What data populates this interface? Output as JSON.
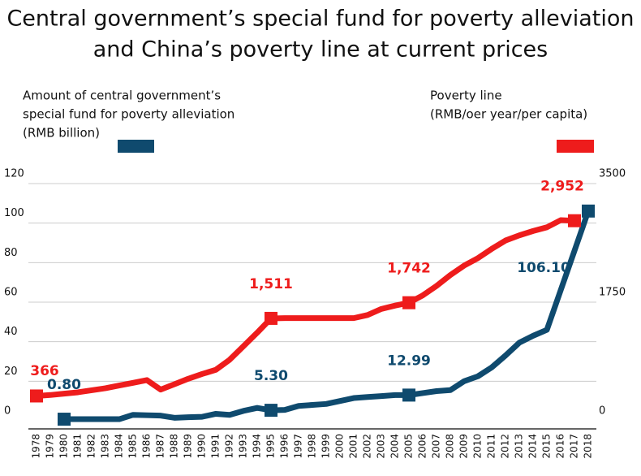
{
  "chart_data": {
    "type": "line",
    "title": [
      "Central government’s special fund for poverty alleviation",
      "and China’s poverty line at current prices"
    ],
    "ylabel": [
      "Amount of central government’s",
      "special fund for poverty alleviation",
      "(RMB billion)"
    ],
    "y2label": [
      "Poverty line",
      "(RMB/oer year/per capita)"
    ],
    "categories": [
      "1978",
      "1979",
      "1980",
      "1981",
      "1982",
      "1983",
      "1984",
      "1985",
      "1986",
      "1987",
      "1988",
      "1989",
      "1990",
      "1991",
      "1992",
      "1993",
      "1994",
      "1995",
      "1996",
      "1997",
      "1998",
      "1999",
      "2000",
      "2001",
      "2002",
      "2003",
      "2004",
      "2005",
      "2006",
      "2007",
      "2008",
      "2009",
      "2010",
      "2011",
      "2012",
      "2013",
      "2014",
      "2015",
      "2016",
      "2017",
      "2018"
    ],
    "series": [
      {
        "color": "#0f4a6e",
        "values": [
          null,
          null,
          0.8,
          0.8,
          0.8,
          0.8,
          0.8,
          3,
          2.8,
          2.6,
          1.5,
          1.8,
          2,
          3.5,
          3,
          5,
          6.5,
          5.3,
          5.5,
          7.5,
          8,
          8.5,
          10,
          11.5,
          12,
          12.5,
          13,
          12.99,
          14,
          15,
          15.5,
          20,
          22.5,
          27,
          33,
          39.5,
          43,
          46,
          66,
          86,
          106.1
        ],
        "value_labels": [
          null,
          null,
          "0.80",
          null,
          null,
          null,
          null,
          null,
          null,
          null,
          null,
          null,
          null,
          null,
          null,
          null,
          null,
          "5.30",
          null,
          null,
          null,
          null,
          null,
          null,
          null,
          null,
          null,
          "12.99",
          null,
          null,
          null,
          null,
          null,
          null,
          null,
          null,
          null,
          null,
          null,
          null,
          "106.10"
        ]
      },
      {
        "color": "#ee1c1c",
        "axis": "y2",
        "values": [
          366,
          380,
          400,
          420,
          450,
          480,
          520,
          560,
          600,
          460,
          540,
          620,
          690,
          752,
          900,
          1100,
          1300,
          1511,
          1515,
          1515,
          1515,
          1515,
          1515,
          1515,
          1560,
          1650,
          1700,
          1742,
          1850,
          1990,
          2150,
          2290,
          2400,
          2536,
          2660,
          2736,
          2800,
          2855,
          2960,
          2952,
          null
        ],
        "value_labels": [
          "366",
          null,
          null,
          null,
          null,
          null,
          null,
          null,
          null,
          null,
          null,
          null,
          null,
          null,
          null,
          null,
          null,
          "1,511",
          null,
          null,
          null,
          null,
          null,
          null,
          null,
          null,
          null,
          "1,742",
          null,
          null,
          null,
          null,
          null,
          null,
          null,
          null,
          null,
          null,
          null,
          "2,952",
          null
        ]
      }
    ],
    "ylim": [
      0,
      120
    ],
    "yticks": [
      0,
      20,
      40,
      60,
      80,
      100,
      120
    ],
    "y2lim": [
      0,
      3500
    ],
    "y2ticks": [
      0,
      1750,
      3500
    ],
    "grid": true
  }
}
